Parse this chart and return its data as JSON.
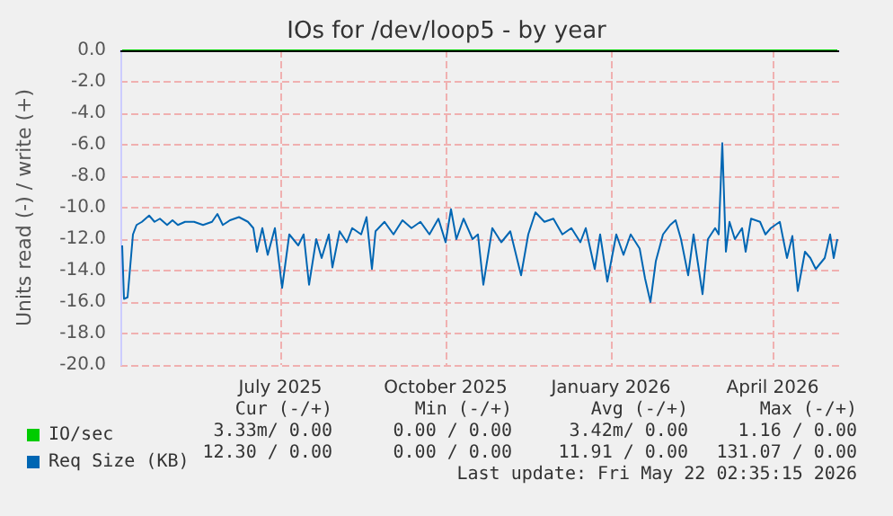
{
  "chart_data": {
    "type": "line",
    "title": "IOs for /dev/loop5 - by year",
    "ylabel": "Units read (-) / write (+)",
    "x": [
      "2025-04-04",
      "2025-04-05",
      "2025-04-07",
      "2025-04-10",
      "2025-04-12",
      "2025-04-15",
      "2025-04-19",
      "2025-04-22",
      "2025-04-25",
      "2025-04-29",
      "2025-05-02",
      "2025-05-05",
      "2025-05-09",
      "2025-05-14",
      "2025-05-19",
      "2025-05-24",
      "2025-05-27",
      "2025-05-30",
      "2025-06-03",
      "2025-06-08",
      "2025-06-13",
      "2025-06-16",
      "2025-06-18",
      "2025-06-21",
      "2025-06-24",
      "2025-06-28",
      "2025-07-02",
      "2025-07-06",
      "2025-07-11",
      "2025-07-14",
      "2025-07-17",
      "2025-07-21",
      "2025-07-24",
      "2025-07-28",
      "2025-07-30",
      "2025-08-03",
      "2025-08-07",
      "2025-08-10",
      "2025-08-15",
      "2025-08-18",
      "2025-08-21",
      "2025-08-23",
      "2025-08-28",
      "2025-09-02",
      "2025-09-07",
      "2025-09-12",
      "2025-09-17",
      "2025-09-22",
      "2025-09-27",
      "2025-10-01",
      "2025-10-04",
      "2025-10-07",
      "2025-10-11",
      "2025-10-16",
      "2025-10-19",
      "2025-10-22",
      "2025-10-27",
      "2025-11-01",
      "2025-11-06",
      "2025-11-12",
      "2025-11-16",
      "2025-11-20",
      "2025-11-25",
      "2025-11-30",
      "2025-12-05",
      "2025-12-10",
      "2025-12-15",
      "2025-12-18",
      "2025-12-23",
      "2025-12-26",
      "2025-12-30",
      "2026-01-04",
      "2026-01-08",
      "2026-01-12",
      "2026-01-17",
      "2026-01-20",
      "2026-01-23",
      "2026-01-26",
      "2026-01-30",
      "2026-02-03",
      "2026-02-06",
      "2026-02-09",
      "2026-02-13",
      "2026-02-16",
      "2026-02-21",
      "2026-02-24",
      "2026-02-28",
      "2026-03-02",
      "2026-03-04",
      "2026-03-06",
      "2026-03-08",
      "2026-03-11",
      "2026-03-15",
      "2026-03-17",
      "2026-03-20",
      "2026-03-25",
      "2026-03-28",
      "2026-03-31",
      "2026-04-05",
      "2026-04-09",
      "2026-04-12",
      "2026-04-15",
      "2026-04-19",
      "2026-04-22",
      "2026-04-25",
      "2026-04-30",
      "2026-05-03",
      "2026-05-05",
      "2026-05-07"
    ],
    "series": [
      {
        "name": "IO/sec",
        "color": "#00cc00",
        "x": [
          "2025-04-04",
          "2026-05-07"
        ],
        "values": [
          0,
          0
        ]
      },
      {
        "name": "Req Size (KB)",
        "color": "#0066b3",
        "values": [
          -12.4,
          -15.8,
          -15.7,
          -11.7,
          -11.1,
          -10.9,
          -10.5,
          -10.9,
          -10.7,
          -11.1,
          -10.8,
          -11.1,
          -10.9,
          -10.9,
          -11.1,
          -10.9,
          -10.4,
          -11.1,
          -10.8,
          -10.6,
          -10.9,
          -11.3,
          -12.8,
          -11.3,
          -13.0,
          -11.3,
          -15.1,
          -11.7,
          -12.4,
          -11.7,
          -14.9,
          -12.0,
          -13.2,
          -11.7,
          -13.8,
          -11.5,
          -12.2,
          -11.3,
          -11.7,
          -10.6,
          -13.9,
          -11.5,
          -10.9,
          -11.7,
          -10.8,
          -11.3,
          -10.9,
          -11.7,
          -10.7,
          -12.2,
          -10.1,
          -12.0,
          -10.7,
          -12.0,
          -11.7,
          -14.9,
          -11.3,
          -12.2,
          -11.5,
          -14.3,
          -11.7,
          -10.3,
          -10.9,
          -10.7,
          -11.7,
          -11.3,
          -12.2,
          -11.3,
          -13.9,
          -11.7,
          -14.7,
          -11.7,
          -13.0,
          -11.7,
          -12.6,
          -14.5,
          -16.0,
          -13.4,
          -11.7,
          -11.1,
          -10.8,
          -12.0,
          -14.3,
          -11.7,
          -15.5,
          -12.0,
          -11.3,
          -11.7,
          -5.9,
          -12.8,
          -10.9,
          -12.0,
          -11.3,
          -12.8,
          -10.7,
          -10.9,
          -11.7,
          -11.3,
          -10.9,
          -13.2,
          -11.8,
          -15.3,
          -12.8,
          -13.2,
          -13.9,
          -13.2,
          -11.7,
          -13.2,
          -12.0
        ]
      }
    ],
    "xlim": [
      "2025-04-03",
      "2026-05-08"
    ],
    "xticks": [
      {
        "value": "2025-07-01",
        "label": "July 2025"
      },
      {
        "value": "2025-10-01",
        "label": "October 2025"
      },
      {
        "value": "2026-01-01",
        "label": "January 2026"
      },
      {
        "value": "2026-04-01",
        "label": "April 2026"
      }
    ],
    "ylim": [
      -20,
      0
    ],
    "yticks": [
      {
        "value": -20,
        "label": "-20.0"
      },
      {
        "value": -18,
        "label": "-18.0"
      },
      {
        "value": -16,
        "label": "-16.0"
      },
      {
        "value": -14,
        "label": "-14.0"
      },
      {
        "value": -12,
        "label": "-12.0"
      },
      {
        "value": -10,
        "label": "-10.0"
      },
      {
        "value": -8,
        "label": "-8.0"
      },
      {
        "value": -6,
        "label": "-6.0"
      },
      {
        "value": -4,
        "label": "-4.0"
      },
      {
        "value": -2,
        "label": "-2.0"
      },
      {
        "value": 0,
        "label": "0.0"
      }
    ],
    "ref_lines": [
      {
        "axis": "y",
        "value": 0,
        "color": "#000000"
      }
    ],
    "grid": true,
    "legend": "bottom left",
    "annotations": [
      "Cur (-/+)",
      "Min (-/+)",
      "Avg (-/+)",
      "Max (-/+)",
      "3.33m/ 0.00",
      "0.00 / 0.00",
      "3.42m/ 0.00",
      "1.16 / 0.00",
      "12.30 / 0.00",
      "0.00 / 0.00",
      "11.91 / 0.00",
      "131.07 / 0.00",
      "Last update: Fri May 22 02:35:15 2026"
    ]
  }
}
